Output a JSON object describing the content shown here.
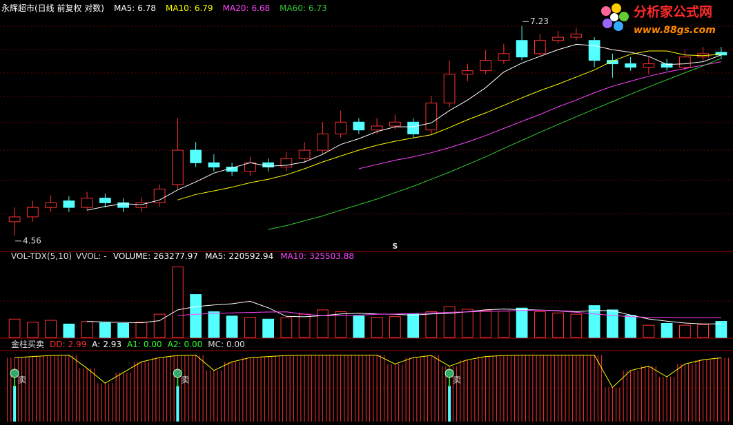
{
  "chart_data": [
    {
      "type": "candlestick",
      "title": "永辉超市(日线 前复权 对数)",
      "log_scale": true,
      "ylim": [
        4.45,
        7.4
      ],
      "up_color": "#ff3232",
      "down_color": "#54ffff",
      "open": [
        4.7,
        4.75,
        4.85,
        4.92,
        4.85,
        4.95,
        4.9,
        4.85,
        4.9,
        5.1,
        5.5,
        5.35,
        5.3,
        5.25,
        5.35,
        5.3,
        5.4,
        5.5,
        5.7,
        5.85,
        5.75,
        5.8,
        5.85,
        5.75,
        6.1,
        6.5,
        6.55,
        6.7,
        7.0,
        6.8,
        7.0,
        7.05,
        7.0,
        6.7,
        6.65,
        6.6,
        6.65,
        6.6,
        6.75,
        6.82
      ],
      "high": [
        4.85,
        4.92,
        4.98,
        4.97,
        5.02,
        5.0,
        4.95,
        4.96,
        5.1,
        5.9,
        5.6,
        5.45,
        5.35,
        5.42,
        5.4,
        5.48,
        5.6,
        5.85,
        6.0,
        5.9,
        5.9,
        5.95,
        5.9,
        6.2,
        6.7,
        6.65,
        6.85,
        6.95,
        7.23,
        7.1,
        7.15,
        7.2,
        7.05,
        6.8,
        6.75,
        6.75,
        6.72,
        6.85,
        6.9,
        6.9
      ],
      "low": [
        4.56,
        4.7,
        4.8,
        4.8,
        4.82,
        4.85,
        4.8,
        4.8,
        4.86,
        5.05,
        5.3,
        5.25,
        5.2,
        5.2,
        5.25,
        5.25,
        5.35,
        5.45,
        5.65,
        5.7,
        5.7,
        5.75,
        5.65,
        5.7,
        6.05,
        6.4,
        6.5,
        6.65,
        6.7,
        6.75,
        6.95,
        7.0,
        6.6,
        6.45,
        6.55,
        6.5,
        6.55,
        6.55,
        6.7,
        6.72
      ],
      "close": [
        4.75,
        4.85,
        4.9,
        4.85,
        4.95,
        4.9,
        4.85,
        4.9,
        5.05,
        5.5,
        5.35,
        5.3,
        5.25,
        5.35,
        5.3,
        5.4,
        5.5,
        5.7,
        5.85,
        5.75,
        5.8,
        5.85,
        5.7,
        6.1,
        6.5,
        6.55,
        6.7,
        6.8,
        6.75,
        7.0,
        7.05,
        7.1,
        6.7,
        6.65,
        6.6,
        6.65,
        6.6,
        6.75,
        6.8,
        6.78
      ],
      "series": [
        {
          "name": "MA5:",
          "color": "#ffffff",
          "values": [
            null,
            null,
            null,
            null,
            4.82,
            4.86,
            4.89,
            4.88,
            4.93,
            5.04,
            5.13,
            5.23,
            5.29,
            5.35,
            5.31,
            5.32,
            5.36,
            5.45,
            5.57,
            5.64,
            5.73,
            5.79,
            5.79,
            5.84,
            6.0,
            6.14,
            6.31,
            6.53,
            6.66,
            6.76,
            6.86,
            6.94,
            6.92,
            6.86,
            6.82,
            6.76,
            6.64,
            6.65,
            6.68,
            6.78
          ]
        },
        {
          "name": "MA10:",
          "color": "#ffff00",
          "values": [
            null,
            null,
            null,
            null,
            null,
            null,
            null,
            null,
            null,
            4.93,
            4.99,
            5.03,
            5.07,
            5.12,
            5.16,
            5.21,
            5.28,
            5.36,
            5.43,
            5.5,
            5.56,
            5.61,
            5.65,
            5.69,
            5.78,
            5.88,
            5.97,
            6.07,
            6.17,
            6.27,
            6.36,
            6.46,
            6.56,
            6.69,
            6.79,
            6.84,
            6.84,
            6.78,
            6.77,
            6.79
          ]
        },
        {
          "name": "MA20:",
          "color": "#ff44ff",
          "values": [
            null,
            null,
            null,
            null,
            null,
            null,
            null,
            null,
            null,
            null,
            null,
            null,
            null,
            null,
            null,
            null,
            null,
            null,
            null,
            5.28,
            5.33,
            5.38,
            5.42,
            5.47,
            5.53,
            5.6,
            5.68,
            5.77,
            5.86,
            5.95,
            6.05,
            6.14,
            6.24,
            6.33,
            6.4,
            6.47,
            6.53,
            6.58,
            6.63,
            6.68
          ]
        },
        {
          "name": "MA60:",
          "color": "#33cc33",
          "values": [
            null,
            null,
            null,
            null,
            null,
            null,
            null,
            null,
            null,
            null,
            null,
            null,
            null,
            null,
            4.62,
            4.66,
            4.71,
            4.76,
            4.82,
            4.88,
            4.94,
            5.01,
            5.08,
            5.16,
            5.24,
            5.33,
            5.42,
            5.52,
            5.62,
            5.72,
            5.82,
            5.92,
            6.02,
            6.12,
            6.22,
            6.32,
            6.42,
            6.52,
            6.62,
            6.73
          ]
        }
      ],
      "marker": {
        "label": "S",
        "index": 21
      }
    },
    {
      "type": "bar",
      "title": "VOL-TDX(5,10)",
      "subtitle": "VVOL: -",
      "name": "VOLUME:",
      "ylim": [
        0,
        1200000
      ],
      "up_color": "#ff3232",
      "down_color": "#54ffff",
      "values": [
        300000,
        250000,
        280000,
        220000,
        260000,
        240000,
        230000,
        250000,
        380000,
        1150000,
        700000,
        420000,
        350000,
        330000,
        300000,
        320000,
        380000,
        450000,
        420000,
        350000,
        330000,
        340000,
        380000,
        420000,
        500000,
        460000,
        440000,
        430000,
        480000,
        420000,
        400000,
        380000,
        520000,
        450000,
        360000,
        200000,
        230000,
        200000,
        210000,
        263277.97
      ],
      "series": [
        {
          "name": "MA5:",
          "color": "#ffffff",
          "values": [
            null,
            null,
            null,
            null,
            262000,
            252000,
            246000,
            240000,
            275000,
            450000,
            504000,
            530000,
            550000,
            590000,
            484000,
            344000,
            338000,
            356000,
            384000,
            396000,
            382000,
            378000,
            364000,
            384000,
            394000,
            420000,
            452000,
            464000,
            454000,
            448000,
            436000,
            422000,
            440000,
            436000,
            366000,
            302000,
            266000,
            236000,
            221000,
            220592.94
          ]
        },
        {
          "name": "MA10:",
          "color": "#ff44ff",
          "values": [
            null,
            null,
            null,
            null,
            null,
            null,
            null,
            null,
            null,
            358000,
            378000,
            392000,
            400000,
            408000,
            415000,
            417000,
            380000,
            355000,
            355000,
            365000,
            378000,
            382000,
            390000,
            400000,
            410000,
            418000,
            425000,
            432000,
            440000,
            445000,
            432000,
            410000,
            385000,
            360000,
            340000,
            330000,
            325000,
            322000,
            323000,
            325503.88
          ]
        }
      ]
    },
    {
      "type": "line",
      "title": "金柱买卖",
      "ylim": [
        0,
        3.2
      ],
      "bar_color": "#ff3232",
      "series": [
        {
          "name": "DD:",
          "color": "#ffff00",
          "values": [
            3.0,
            3.05,
            3.1,
            3.12,
            2.5,
            1.8,
            2.3,
            2.8,
            3.0,
            3.1,
            3.12,
            2.4,
            2.8,
            3.0,
            3.05,
            3.1,
            3.12,
            3.12,
            3.12,
            3.12,
            3.12,
            2.7,
            3.0,
            3.1,
            2.6,
            2.9,
            3.05,
            3.1,
            3.12,
            3.12,
            3.12,
            3.12,
            3.12,
            1.6,
            2.4,
            2.6,
            2.1,
            2.7,
            2.9,
            2.99
          ]
        }
      ],
      "indicators": [
        {
          "name": "A:",
          "value": 2.93,
          "color": "#ffffff"
        },
        {
          "name": "A1:",
          "value": 0,
          "value_label": "0.00",
          "color": "#33ff33"
        },
        {
          "name": "A2:",
          "value": 0,
          "value_label": "0.00",
          "color": "#33ff33"
        },
        {
          "name": "MC:",
          "value": 0,
          "value_label": "0.00",
          "color": "#dddddd"
        }
      ],
      "signals": [
        0,
        9,
        24
      ],
      "signal_label": "卖"
    }
  ],
  "watermark": {
    "name": "分析家公式网",
    "url": "www.88gs.com"
  }
}
